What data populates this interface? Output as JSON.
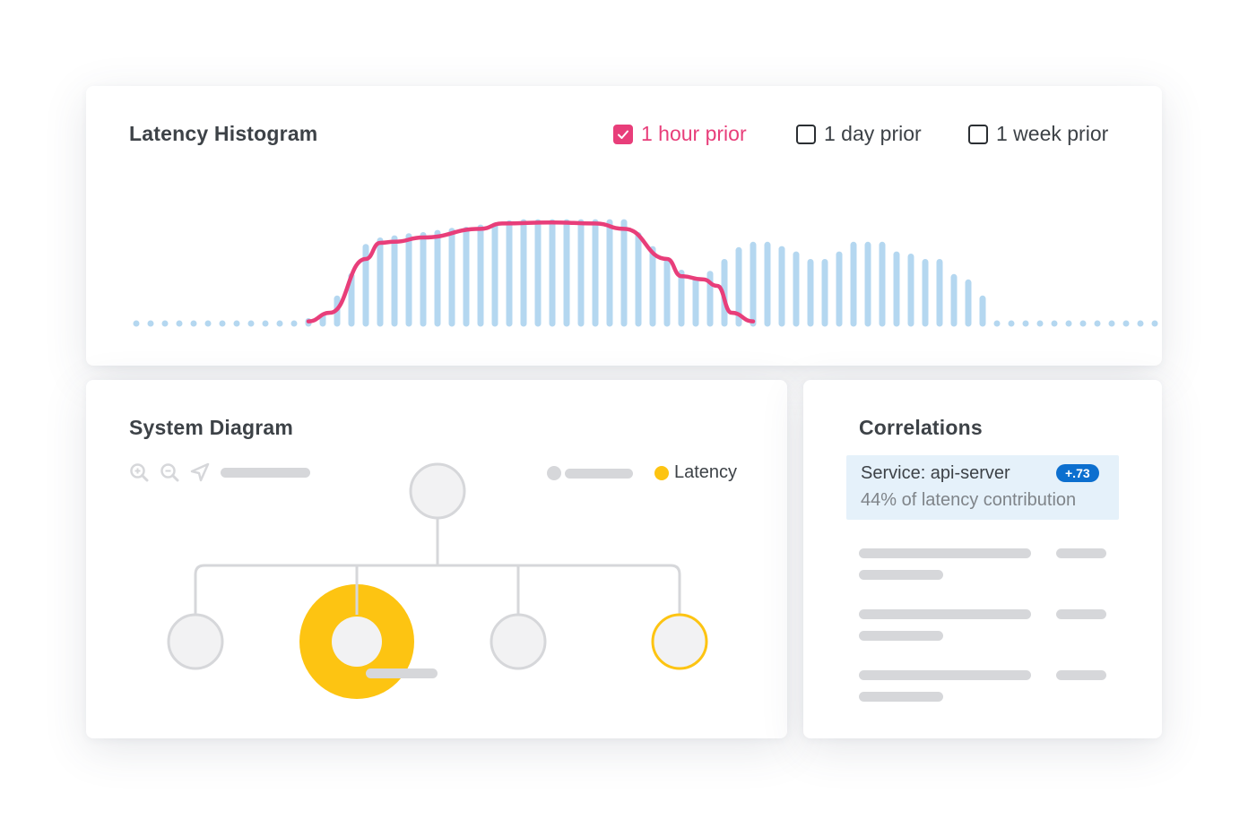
{
  "histogram": {
    "title": "Latency Histogram",
    "options": [
      {
        "label": "1 hour prior",
        "checked": true
      },
      {
        "label": "1 day prior",
        "checked": false
      },
      {
        "label": "1 week prior",
        "checked": false
      }
    ],
    "colors": {
      "bars": "#b4d7f0",
      "line": "#e83e7a"
    },
    "bar_levels": [
      0,
      0,
      0,
      0,
      0,
      0,
      0,
      0,
      0,
      0,
      0,
      0,
      0.05,
      0.1,
      0.26,
      0.47,
      0.74,
      0.8,
      0.82,
      0.84,
      0.85,
      0.87,
      0.89,
      0.9,
      0.92,
      0.94,
      0.96,
      0.97,
      0.97,
      0.97,
      0.97,
      0.97,
      0.97,
      0.97,
      0.97,
      0.85,
      0.72,
      0.6,
      0.5,
      0.43,
      0.49,
      0.6,
      0.71,
      0.76,
      0.76,
      0.72,
      0.67,
      0.6,
      0.6,
      0.67,
      0.76,
      0.76,
      0.76,
      0.67,
      0.65,
      0.6,
      0.6,
      0.46,
      0.41,
      0.26,
      0,
      0,
      0,
      0,
      0,
      0,
      0,
      0,
      0,
      0,
      0,
      0,
      0,
      0
    ],
    "line_levels": [
      [
        12,
        0.02
      ],
      [
        13.5,
        0.1
      ],
      [
        16,
        0.6
      ],
      [
        17,
        0.75
      ],
      [
        18,
        0.76
      ],
      [
        20,
        0.8
      ],
      [
        24,
        0.88
      ],
      [
        25.5,
        0.93
      ],
      [
        29,
        0.94
      ],
      [
        32,
        0.93
      ],
      [
        34,
        0.88
      ],
      [
        37,
        0.6
      ],
      [
        38,
        0.44
      ],
      [
        39.5,
        0.41
      ],
      [
        40.5,
        0.35
      ],
      [
        41.5,
        0.1
      ],
      [
        43,
        0.02
      ]
    ]
  },
  "diagram": {
    "title": "System Diagram",
    "latency_label": "Latency",
    "colors": {
      "latency": "#fdc412",
      "node_fill": "#f2f2f3",
      "node_stroke": "#d6d7da"
    }
  },
  "correlations": {
    "title": "Correlations",
    "service_label": "Service: api-server",
    "badge": "+.73",
    "subtext": "44% of latency contribution"
  }
}
